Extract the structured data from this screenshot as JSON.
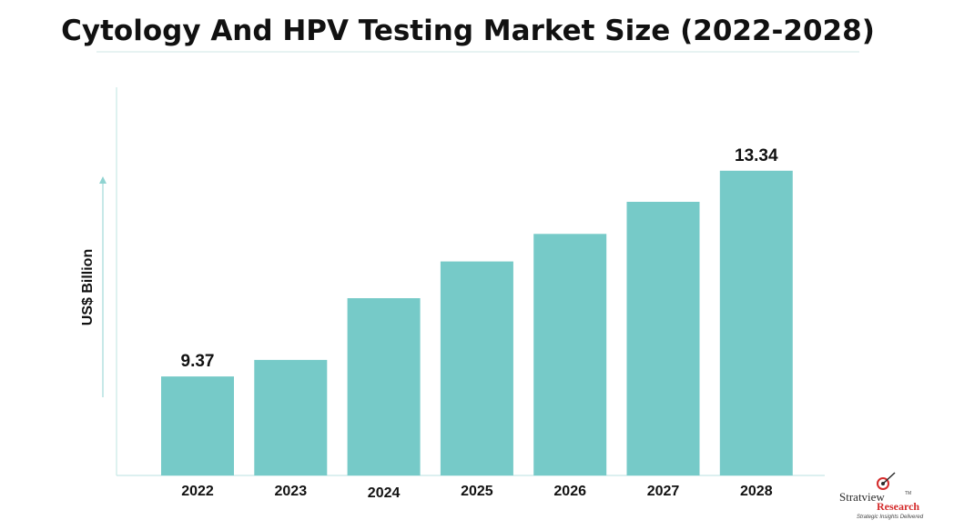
{
  "chart_data": {
    "type": "bar",
    "title": "Cytology And HPV Testing Market Size (2022-2028)",
    "ylabel": "US$ Billion",
    "xlabel": "",
    "categories": [
      "2022",
      "2023",
      "2024",
      "2025",
      "2026",
      "2027",
      "2028"
    ],
    "values": [
      9.37,
      9.69,
      10.88,
      11.59,
      12.12,
      12.74,
      13.34
    ],
    "data_labels": [
      "9.37",
      "",
      "",
      "",
      "",
      "",
      "13.34"
    ],
    "ylim": [
      7.46,
      14.95
    ],
    "grid": false,
    "legend": "none",
    "bar_color": "#76cac8",
    "axis_color": "#c8e8e6"
  },
  "logo": {
    "name": "Stratview",
    "tm": "TM",
    "sub": "Research",
    "tagline": "Strategic Insights Delivered"
  }
}
